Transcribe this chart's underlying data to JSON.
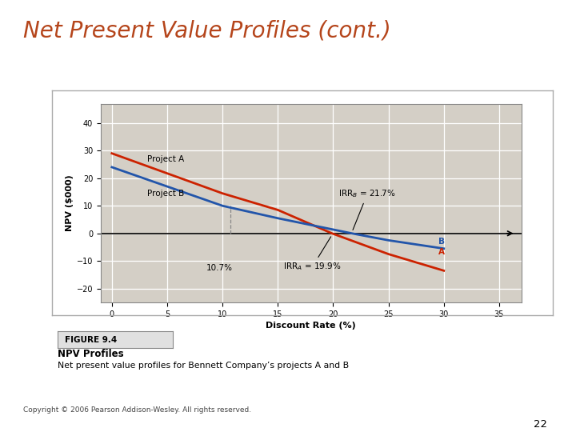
{
  "title": "Net Present Value Profiles (cont.)",
  "title_color": "#b5451b",
  "title_fontsize": 20,
  "xlabel": "Discount Rate (%)",
  "ylabel": "NPV ($000)",
  "xlim": [
    -1,
    37
  ],
  "ylim": [
    -25,
    47
  ],
  "xticks": [
    0,
    5,
    10,
    15,
    20,
    25,
    30,
    35
  ],
  "yticks": [
    -20,
    -10,
    0,
    10,
    20,
    30,
    40
  ],
  "background_color": "#f0f0f0",
  "plot_bg_color": "#d4cfc6",
  "grid_color": "#ffffff",
  "slide_bg_top": "#cce0f0",
  "slide_bg_bottom": "#ffffff",
  "project_A_x": [
    0,
    10,
    15,
    19.9,
    25,
    30
  ],
  "project_A_y": [
    29.0,
    14.5,
    8.5,
    0.0,
    -7.5,
    -13.5
  ],
  "project_A_color": "#cc2200",
  "project_B_x": [
    0,
    10,
    15,
    21.7,
    25,
    30
  ],
  "project_B_y": [
    24.0,
    10.0,
    5.5,
    0.0,
    -2.5,
    -5.5
  ],
  "project_B_color": "#2255aa",
  "irr_B_label": "IRR$_B$ = 21.7%",
  "irr_A_label": "IRR$_A$ = 19.9%",
  "crossover_x": 10.7,
  "crossover_y_top": 10.0,
  "label_A": "Project A",
  "label_B": "Project B",
  "ann_fontsize": 7.5,
  "axis_label_fontsize": 8,
  "tick_fontsize": 7,
  "figure_label_text": "FIGURE 9.4",
  "figure_title": "NPV Profiles",
  "figure_caption": "Net present value profiles for Bennett Company’s projects A and B",
  "copyright_text": "Copyright © 2006 Pearson Addison-Wesley. All rights reserved.",
  "page_number": "22"
}
